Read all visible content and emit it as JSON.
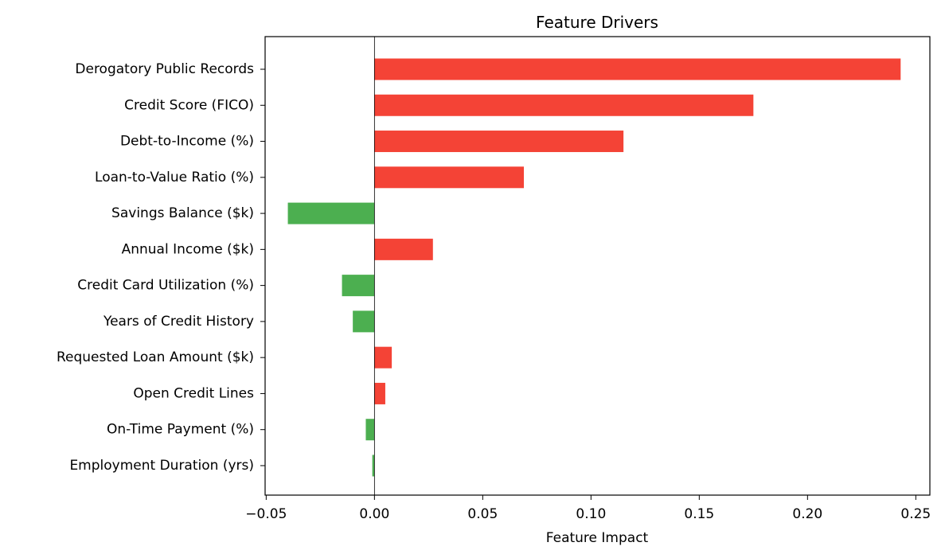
{
  "chart_data": {
    "type": "bar",
    "orientation": "horizontal",
    "title": "Feature Drivers",
    "xlabel": "Feature Impact",
    "ylabel": "",
    "xlim": [
      -0.0505,
      0.2565
    ],
    "xticks": [
      -0.05,
      0.0,
      0.05,
      0.1,
      0.15,
      0.2,
      0.25
    ],
    "xtick_labels": [
      "−0.05",
      "0.00",
      "0.05",
      "0.10",
      "0.15",
      "0.20",
      "0.25"
    ],
    "grid": false,
    "legend": "none",
    "zero_line": true,
    "colors": {
      "positive": "#f44336",
      "negative": "#4caf50",
      "axis": "#000000"
    },
    "categories": [
      "Derogatory Public Records",
      "Credit Score (FICO)",
      "Debt-to-Income (%)",
      "Loan-to-Value Ratio (%)",
      "Savings Balance ($k)",
      "Annual Income ($k)",
      "Credit Card Utilization (%)",
      "Years of Credit History",
      "Requested Loan Amount ($k)",
      "Open Credit Lines",
      "On-Time Payment (%)",
      "Employment Duration (yrs)"
    ],
    "values": [
      0.243,
      0.175,
      0.115,
      0.069,
      -0.04,
      0.027,
      -0.015,
      -0.01,
      0.008,
      0.005,
      -0.004,
      -0.001
    ]
  }
}
